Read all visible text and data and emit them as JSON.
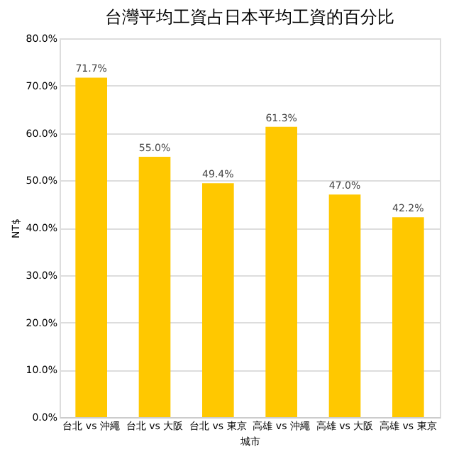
{
  "chart_data": {
    "type": "bar",
    "title": "台灣平均工資占日本平均工資的百分比",
    "xlabel": "城市",
    "ylabel": "NT$",
    "categories": [
      "台北 vs 沖繩",
      "台北 vs 大阪",
      "台北 vs 東京",
      "高雄 vs 沖繩",
      "高雄 vs 大阪",
      "高雄 vs 東京"
    ],
    "values": [
      71.7,
      55.0,
      49.4,
      61.3,
      47.0,
      42.2
    ],
    "value_labels": [
      "71.7%",
      "55.0%",
      "49.4%",
      "61.3%",
      "47.0%",
      "42.2%"
    ],
    "color": "#ffc800",
    "ylim": [
      0,
      80
    ],
    "yticks": [
      {
        "value": 0,
        "label": "0.0%"
      },
      {
        "value": 10,
        "label": "10.0%"
      },
      {
        "value": 20,
        "label": "20.0%"
      },
      {
        "value": 30,
        "label": "30.0%"
      },
      {
        "value": 40,
        "label": "40.0%"
      },
      {
        "value": 50,
        "label": "50.0%"
      },
      {
        "value": 60,
        "label": "60.0%"
      },
      {
        "value": 70,
        "label": "70.0%"
      },
      {
        "value": 80,
        "label": "80.0%"
      }
    ],
    "grid": "y"
  }
}
